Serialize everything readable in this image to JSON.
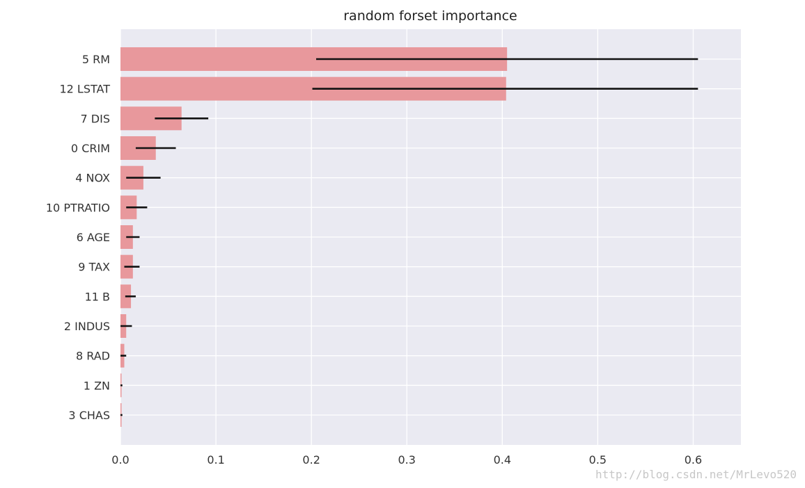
{
  "chart_data": {
    "type": "bar",
    "orientation": "horizontal",
    "title": "random forset importance",
    "xlabel": "",
    "ylabel": "",
    "xlim": [
      0,
      0.65
    ],
    "xticks": [
      0.0,
      0.1,
      0.2,
      0.3,
      0.4,
      0.5,
      0.6
    ],
    "xtick_labels": [
      "0.0",
      "0.1",
      "0.2",
      "0.3",
      "0.4",
      "0.5",
      "0.6"
    ],
    "grid": true,
    "categories": [
      "5 RM",
      "12 LSTAT",
      "7 DIS",
      "0 CRIM",
      "4 NOX",
      "10 PTRATIO",
      "6 AGE",
      "9 TAX",
      "11 B",
      "2 INDUS",
      "8 RAD",
      "1 ZN",
      "3 CHAS"
    ],
    "values": [
      0.405,
      0.404,
      0.064,
      0.037,
      0.024,
      0.017,
      0.013,
      0.013,
      0.011,
      0.006,
      0.004,
      0.001,
      0.001
    ],
    "error_low": [
      0.205,
      0.201,
      0.036,
      0.016,
      0.006,
      0.006,
      0.006,
      0.004,
      0.005,
      0.0,
      0.0,
      0.0,
      0.0
    ],
    "error_high": [
      0.605,
      0.605,
      0.092,
      0.058,
      0.042,
      0.028,
      0.02,
      0.02,
      0.016,
      0.012,
      0.006,
      0.002,
      0.002
    ],
    "colors": {
      "bar": "#e8989c",
      "error": "#111111",
      "plot_background": "#eaeaf2",
      "grid": "#ffffff"
    }
  },
  "watermark": "http://blog.csdn.net/MrLevo520"
}
